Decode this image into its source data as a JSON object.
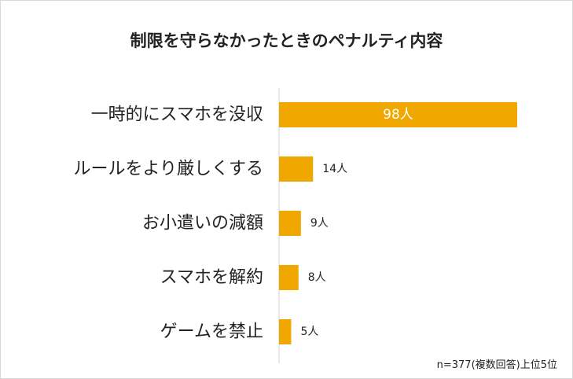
{
  "chart_data": {
    "type": "bar",
    "orientation": "horizontal",
    "title": "制限を守らなかったときのペナルティ内容",
    "categories": [
      "一時的にスマホを没収",
      "ルールをより厳しくする",
      "お小遣いの減額",
      "スマホを解約",
      "ゲームを禁止"
    ],
    "values": [
      98,
      14,
      9,
      8,
      5
    ],
    "value_labels": [
      "98人",
      "14人",
      "9人",
      "8人",
      "5人"
    ],
    "unit": "人",
    "xlim": [
      0,
      98
    ],
    "grid": false,
    "legend": "none",
    "bar_color": "#F0A800",
    "note": "n=377(複数回答)上位5位"
  }
}
